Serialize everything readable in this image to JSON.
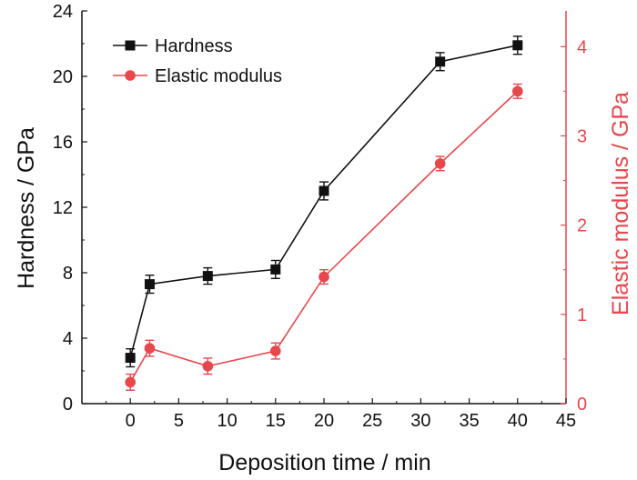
{
  "chart_data": {
    "type": "line",
    "title": "",
    "xlabel": "Deposition time / min",
    "ylabel_left": "Hardness / GPa",
    "ylabel_right": "Elastic modulus / GPa",
    "xlim": [
      -5,
      45
    ],
    "ylim_left": [
      0,
      24
    ],
    "ylim_right": [
      0,
      4.4
    ],
    "xticks": [
      "0",
      "5",
      "10",
      "15",
      "20",
      "25",
      "30",
      "35",
      "40",
      "45"
    ],
    "yticks_left": [
      "0",
      "4",
      "8",
      "12",
      "16",
      "20",
      "24"
    ],
    "yticks_right": [
      "0",
      "1",
      "2",
      "3",
      "4"
    ],
    "grid": false,
    "legend_position": "top-left",
    "series": [
      {
        "name": "Hardness",
        "axis": "left",
        "color": "#111111",
        "marker": "square",
        "x": [
          0,
          2,
          8,
          15,
          20,
          32,
          40
        ],
        "y": [
          2.8,
          7.3,
          7.8,
          8.2,
          13.0,
          20.9,
          21.9
        ],
        "err": [
          0.55,
          0.55,
          0.5,
          0.55,
          0.55,
          0.55,
          0.55
        ]
      },
      {
        "name": "Elastic modulus",
        "axis": "right",
        "color": "#e8474c",
        "marker": "circle",
        "x": [
          0,
          2,
          8,
          15,
          20,
          32,
          40
        ],
        "y": [
          0.24,
          0.62,
          0.42,
          0.59,
          1.42,
          2.69,
          3.5
        ],
        "err": [
          0.09,
          0.09,
          0.09,
          0.09,
          0.08,
          0.08,
          0.08
        ]
      }
    ]
  }
}
